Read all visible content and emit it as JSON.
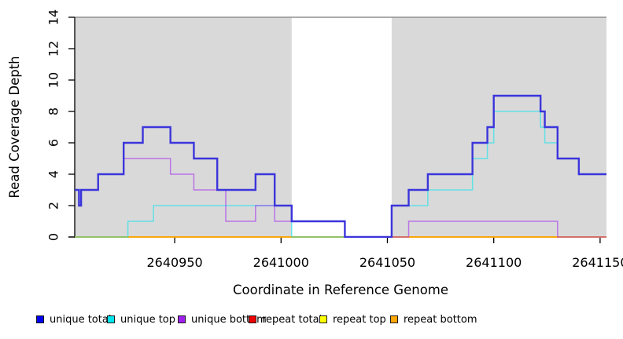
{
  "chart_data": {
    "type": "line",
    "subtype": "step-coverage",
    "title": "",
    "xlabel": "Coordinate in Reference Genome",
    "ylabel": "Read Coverage Depth",
    "xlim": [
      2640903,
      2641153
    ],
    "ylim": [
      0,
      14
    ],
    "xticks": [
      2640950,
      2641000,
      2641050,
      2641100,
      2641150
    ],
    "yticks": [
      0,
      2,
      4,
      6,
      8,
      10,
      12,
      14
    ],
    "grid": false,
    "legend_position": "bottom",
    "colors": {
      "shade": "#d9d9d9",
      "plot_background": "#ffffff",
      "top_border": "#909090",
      "axis": "#000000"
    },
    "shaded_regions": [
      {
        "from": 2640903,
        "to": 2641005
      },
      {
        "from": 2641052,
        "to": 2641153
      }
    ],
    "series": [
      {
        "name": "repeat total",
        "color": "#EE0000",
        "alpha": 1,
        "width": 1.4,
        "points": [
          [
            2640903,
            0
          ],
          [
            2641153,
            0
          ]
        ]
      },
      {
        "name": "repeat top",
        "color": "#FFFF00",
        "alpha": 1,
        "width": 1.4,
        "points": [
          [
            2640903,
            0
          ],
          [
            2641153,
            0
          ]
        ]
      },
      {
        "name": "repeat bottom",
        "color": "#FFA500",
        "alpha": 1,
        "width": 1.5,
        "points": [
          [
            2640903,
            0
          ],
          [
            2641153,
            0
          ]
        ]
      },
      {
        "name": "unique top",
        "color": "#00E5EE",
        "alpha": 0.55,
        "width": 1.5,
        "points": [
          [
            2640903,
            0
          ],
          [
            2640928,
            1
          ],
          [
            2640940,
            2
          ],
          [
            2641005,
            0
          ],
          [
            2641052,
            2
          ],
          [
            2641069,
            3
          ],
          [
            2641090,
            5
          ],
          [
            2641097,
            6
          ],
          [
            2641100,
            8
          ],
          [
            2641122,
            7
          ],
          [
            2641124,
            6
          ],
          [
            2641130,
            5
          ],
          [
            2641140,
            4
          ],
          [
            2641153,
            4
          ]
        ]
      },
      {
        "name": "unique bottom",
        "color": "#A020F0",
        "alpha": 0.55,
        "width": 1.5,
        "points": [
          [
            2640903,
            3
          ],
          [
            2640905,
            2
          ],
          [
            2640906,
            3
          ],
          [
            2640914,
            4
          ],
          [
            2640926,
            5
          ],
          [
            2640948,
            4
          ],
          [
            2640959,
            3
          ],
          [
            2640974,
            1
          ],
          [
            2640988,
            2
          ],
          [
            2640997,
            1
          ],
          [
            2641030,
            0
          ],
          [
            2641060,
            1
          ],
          [
            2641130,
            0
          ],
          [
            2641153,
            0
          ]
        ]
      },
      {
        "name": "unique total",
        "color": "#3B35DB",
        "alpha": 1,
        "width": 2.4,
        "points": [
          [
            2640903,
            3
          ],
          [
            2640905,
            2
          ],
          [
            2640906,
            3
          ],
          [
            2640914,
            4
          ],
          [
            2640926,
            6
          ],
          [
            2640935,
            7
          ],
          [
            2640948,
            6
          ],
          [
            2640959,
            5
          ],
          [
            2640970,
            3
          ],
          [
            2640988,
            4
          ],
          [
            2640997,
            2
          ],
          [
            2641005,
            1
          ],
          [
            2641030,
            0
          ],
          [
            2641052,
            2
          ],
          [
            2641060,
            3
          ],
          [
            2641069,
            4
          ],
          [
            2641090,
            6
          ],
          [
            2641097,
            7
          ],
          [
            2641100,
            9
          ],
          [
            2641122,
            8
          ],
          [
            2641124,
            7
          ],
          [
            2641130,
            5
          ],
          [
            2641140,
            4
          ],
          [
            2641153,
            4
          ]
        ]
      }
    ],
    "legend": [
      {
        "label": "unique total",
        "color": "#0000EE"
      },
      {
        "label": "unique top",
        "color": "#00E5EE"
      },
      {
        "label": "unique bottom",
        "color": "#A020F0"
      },
      {
        "label": "repeat total",
        "color": "#EE0000"
      },
      {
        "label": "repeat top",
        "color": "#FFFF00"
      },
      {
        "label": "repeat bottom",
        "color": "#FFA500"
      }
    ]
  }
}
